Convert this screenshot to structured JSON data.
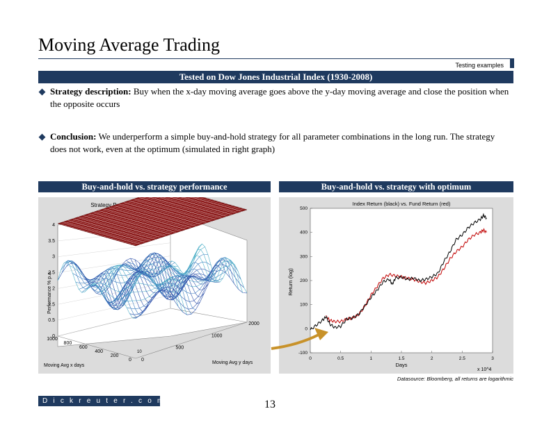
{
  "slide": {
    "title": "Moving Average Trading",
    "section_label": "Testing examples",
    "banner": "Tested on Dow Jones Industrial Index (1930-2008)",
    "bullets": [
      {
        "lead": "Strategy description:",
        "text": " Buy when the x-day moving average goes above the y-day moving average and close the position when the opposite occurs"
      },
      {
        "lead": "Conclusion:",
        "text": " We underperform a simple buy-and-hold strategy for all parameter combinations in the long run. The strategy does not work, even at the optimum (simulated in right graph)"
      }
    ],
    "left_panel_title": "Buy-and-hold vs. strategy performance",
    "right_panel_title": "Buy-and-hold vs. strategy with optimum",
    "footnote": "Datasource: Bloomberg, all returns are logarithmic",
    "logo_text": "Dickreuter.com",
    "page_number": "13"
  },
  "colors": {
    "navy": "#1f3a5f",
    "index_line": "#000000",
    "fund_line": "#c00000",
    "plane": "#8b1a1a",
    "arrow": "#c8922a"
  },
  "chart_data": [
    {
      "type": "surface",
      "title": "Strategy Performance (% p.a. vs. buy-and-hold)",
      "xlabel": "Moving Avg x days",
      "ylabel": "Moving Avg y days",
      "zlabel": "Performance % p.a.",
      "x_ticks": [
        "1000",
        "800",
        "600",
        "400",
        "200",
        "0"
      ],
      "y_ticks": [
        "0",
        "500",
        "1000",
        "2000"
      ],
      "z_ticks": [
        "0",
        "0.5",
        "1.5",
        "2",
        "2.5",
        "3",
        "3.5",
        "4"
      ],
      "y_exponent": "10",
      "reference_plane_z": 3.6
    },
    {
      "type": "line",
      "title": "Index Return (black) vs. Fund Return (red)",
      "xlabel": "Days",
      "ylabel": "Return (log)",
      "x_ticks": [
        "0",
        "0.5",
        "1",
        "1.5",
        "2",
        "2.5",
        "3"
      ],
      "y_ticks": [
        "-100",
        "0",
        "100",
        "200",
        "300",
        "400",
        "500"
      ],
      "x_multiplier": "x 10^4",
      "xlim": [
        0,
        30000
      ],
      "ylim": [
        -100,
        500
      ],
      "series": [
        {
          "name": "Index Return",
          "color": "#000000",
          "points": [
            [
              0,
              -5
            ],
            [
              1000,
              15
            ],
            [
              2000,
              35
            ],
            [
              2600,
              50
            ],
            [
              3200,
              20
            ],
            [
              4000,
              5
            ],
            [
              5000,
              10
            ],
            [
              6000,
              40
            ],
            [
              7000,
              45
            ],
            [
              8000,
              60
            ],
            [
              9000,
              95
            ],
            [
              10000,
              130
            ],
            [
              11000,
              160
            ],
            [
              12000,
              195
            ],
            [
              13000,
              205
            ],
            [
              13500,
              185
            ],
            [
              14000,
              210
            ],
            [
              15000,
              215
            ],
            [
              16000,
              205
            ],
            [
              17000,
              210
            ],
            [
              18000,
              200
            ],
            [
              19000,
              205
            ],
            [
              20000,
              215
            ],
            [
              21000,
              230
            ],
            [
              22000,
              280
            ],
            [
              23000,
              320
            ],
            [
              24000,
              370
            ],
            [
              25000,
              390
            ],
            [
              26000,
              420
            ],
            [
              27000,
              440
            ],
            [
              28000,
              455
            ],
            [
              28500,
              470
            ],
            [
              29000,
              460
            ]
          ]
        },
        {
          "name": "Fund Return",
          "color": "#c00000",
          "points": [
            [
              2600,
              50
            ],
            [
              3200,
              35
            ],
            [
              4000,
              30
            ],
            [
              5000,
              30
            ],
            [
              6000,
              40
            ],
            [
              7000,
              45
            ],
            [
              8000,
              60
            ],
            [
              9000,
              95
            ],
            [
              10000,
              140
            ],
            [
              11000,
              175
            ],
            [
              12000,
              210
            ],
            [
              13000,
              225
            ],
            [
              14000,
              220
            ],
            [
              15000,
              215
            ],
            [
              16000,
              210
            ],
            [
              17000,
              205
            ],
            [
              18000,
              195
            ],
            [
              19000,
              190
            ],
            [
              20000,
              200
            ],
            [
              21000,
              215
            ],
            [
              22000,
              250
            ],
            [
              23000,
              290
            ],
            [
              24000,
              320
            ],
            [
              25000,
              340
            ],
            [
              26000,
              370
            ],
            [
              27000,
              390
            ],
            [
              28000,
              400
            ],
            [
              28500,
              410
            ],
            [
              29000,
              400
            ]
          ]
        }
      ]
    }
  ]
}
